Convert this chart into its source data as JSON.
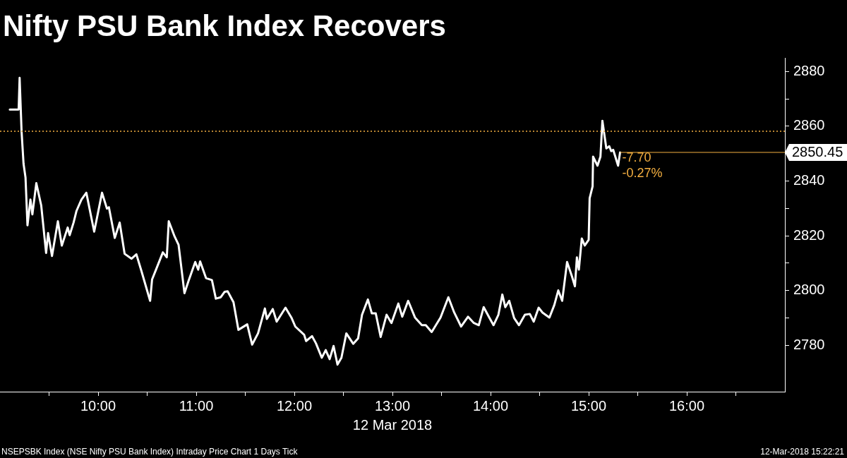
{
  "chart_data": {
    "type": "line",
    "title": "Nifty PSU Bank Index Recovers",
    "xlabel": "12 Mar 2018",
    "series": [
      {
        "color": "#ffffff",
        "x": [
          9.1,
          9.19,
          9.2,
          9.22,
          9.24,
          9.26,
          9.28,
          9.31,
          9.33,
          9.37,
          9.42,
          9.47,
          9.49,
          9.53,
          9.59,
          9.63,
          9.69,
          9.71,
          9.75,
          9.78,
          9.83,
          9.88,
          9.93,
          9.96,
          10.04,
          10.09,
          10.11,
          10.17,
          10.22,
          10.27,
          10.34,
          10.39,
          10.44,
          10.53,
          10.55,
          10.59,
          10.66,
          10.7,
          10.72,
          10.78,
          10.82,
          10.88,
          10.92,
          10.99,
          11.02,
          11.04,
          11.1,
          11.16,
          11.2,
          11.25,
          11.29,
          11.32,
          11.38,
          11.43,
          11.52,
          11.57,
          11.63,
          11.7,
          11.72,
          11.78,
          11.82,
          11.91,
          11.97,
          12.01,
          12.1,
          12.12,
          12.18,
          12.22,
          12.28,
          12.32,
          12.36,
          12.4,
          12.44,
          12.48,
          12.53,
          12.6,
          12.65,
          12.69,
          12.75,
          12.79,
          12.83,
          12.88,
          12.94,
          12.99,
          13.06,
          13.1,
          13.16,
          13.23,
          13.3,
          13.34,
          13.4,
          13.49,
          13.57,
          13.63,
          13.7,
          13.77,
          13.83,
          13.88,
          13.93,
          13.99,
          14.03,
          14.08,
          14.12,
          14.15,
          14.19,
          14.24,
          14.29,
          14.35,
          14.4,
          14.44,
          14.49,
          14.53,
          14.6,
          14.65,
          14.69,
          14.73,
          14.78,
          14.83,
          14.86,
          14.88,
          14.9,
          14.93,
          14.96,
          15.0,
          15.01,
          15.04,
          15.045,
          15.09,
          15.12,
          15.14,
          15.18,
          15.21,
          15.23,
          15.25,
          15.3,
          15.32
        ],
        "values": [
          2866.1,
          2866.1,
          2877.7,
          2858.0,
          2846.3,
          2841.3,
          2823.8,
          2833.2,
          2827.8,
          2839.2,
          2831.1,
          2813.7,
          2821.0,
          2812.6,
          2825.3,
          2816.4,
          2823.0,
          2820.2,
          2824.8,
          2829.1,
          2833.2,
          2835.7,
          2826.8,
          2821.5,
          2835.7,
          2829.9,
          2830.4,
          2819.2,
          2824.8,
          2813.4,
          2811.6,
          2813.2,
          2807.3,
          2796.2,
          2804.0,
          2807.6,
          2813.9,
          2812.1,
          2825.3,
          2819.7,
          2816.7,
          2799.0,
          2803.3,
          2810.4,
          2807.6,
          2810.6,
          2804.5,
          2803.8,
          2797.0,
          2797.5,
          2799.5,
          2799.7,
          2795.7,
          2785.6,
          2787.6,
          2780.2,
          2784.3,
          2793.4,
          2789.6,
          2793.2,
          2788.6,
          2793.7,
          2790.1,
          2786.8,
          2783.8,
          2781.5,
          2783.3,
          2780.7,
          2775.4,
          2778.2,
          2774.9,
          2779.7,
          2772.9,
          2775.4,
          2784.3,
          2780.5,
          2782.5,
          2791.1,
          2796.7,
          2791.6,
          2791.6,
          2783.0,
          2791.1,
          2788.1,
          2795.2,
          2790.4,
          2796.2,
          2790.1,
          2787.3,
          2787.3,
          2784.8,
          2790.1,
          2797.5,
          2791.9,
          2786.8,
          2790.4,
          2788.1,
          2787.3,
          2793.9,
          2789.9,
          2787.3,
          2791.1,
          2798.5,
          2793.9,
          2796.2,
          2789.9,
          2787.3,
          2791.1,
          2791.4,
          2788.6,
          2793.7,
          2791.9,
          2790.1,
          2794.7,
          2800.0,
          2796.2,
          2810.4,
          2805.1,
          2801.5,
          2812.1,
          2807.6,
          2819.0,
          2816.4,
          2818.5,
          2833.7,
          2838.0,
          2848.9,
          2845.6,
          2848.9,
          2862.0,
          2851.9,
          2852.7,
          2850.9,
          2851.4,
          2845.6,
          2850.45
        ]
      }
    ],
    "xlim": [
      9,
      17
    ],
    "xticks": [
      {
        "value": 9.5,
        "label": null
      },
      {
        "value": 10,
        "label": "10:00"
      },
      {
        "value": 10.5,
        "label": null
      },
      {
        "value": 11,
        "label": "11:00"
      },
      {
        "value": 11.5,
        "label": null
      },
      {
        "value": 12,
        "label": "12:00"
      },
      {
        "value": 12.5,
        "label": null
      },
      {
        "value": 13,
        "label": "13:00"
      },
      {
        "value": 13.5,
        "label": null
      },
      {
        "value": 14,
        "label": "14:00"
      },
      {
        "value": 14.5,
        "label": null
      },
      {
        "value": 15,
        "label": "15:00"
      },
      {
        "value": 15.5,
        "label": null
      },
      {
        "value": 16,
        "label": "16:00"
      },
      {
        "value": 16.5,
        "label": null
      }
    ],
    "ylim": [
      2763,
      2885
    ],
    "yticks": [
      2780,
      {
        "value": 2790,
        "label": null
      },
      2800,
      {
        "value": 2810,
        "label": null
      },
      2820,
      {
        "value": 2830,
        "label": null
      },
      2840,
      {
        "value": 2850,
        "label": null
      },
      2860,
      {
        "value": 2870,
        "label": null
      },
      2880
    ],
    "ref_lines": [
      {
        "axis": "y",
        "value": 2858.15,
        "color": "#f5b041",
        "line_style": "dotted"
      },
      {
        "axis": "y",
        "value": 2850.45,
        "label": "2850.45",
        "color": "#f5b041",
        "line_style": "solid"
      }
    ],
    "annotations": [
      {
        "text": "-7.70",
        "x": 15.32,
        "y": 2850.45
      },
      {
        "text": "-0.27%",
        "x": 15.32,
        "y": 2850.45
      },
      "NSEPSBK Index (NSE Nifty PSU Bank Index) Intraday Price Chart 1 Days  Tick",
      "12-Mar-2018 15:22:21"
    ],
    "grid": false,
    "legend": false,
    "marker": "none",
    "line_style": "solid"
  }
}
